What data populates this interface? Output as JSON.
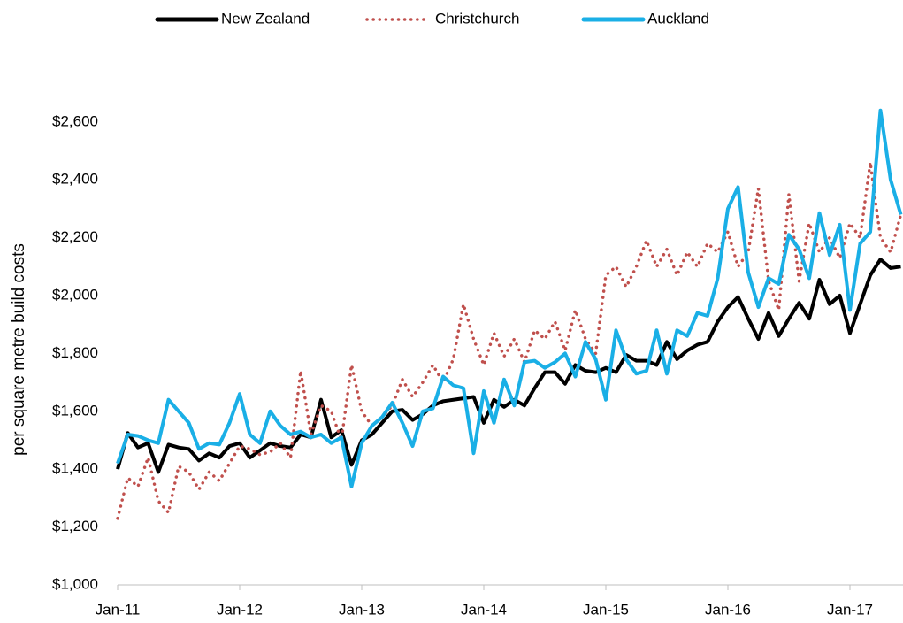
{
  "chart_data": {
    "type": "line",
    "ylabel": "per square metre build costs",
    "categories": [
      "Jan-11",
      null,
      null,
      null,
      null,
      null,
      null,
      null,
      null,
      null,
      null,
      null,
      "Jan-12",
      null,
      null,
      null,
      null,
      null,
      null,
      null,
      null,
      null,
      null,
      null,
      "Jan-13",
      null,
      null,
      null,
      null,
      null,
      null,
      null,
      null,
      null,
      null,
      null,
      "Jan-14",
      null,
      null,
      null,
      null,
      null,
      null,
      null,
      null,
      null,
      null,
      null,
      "Jan-15",
      null,
      null,
      null,
      null,
      null,
      null,
      null,
      null,
      null,
      null,
      null,
      "Jan-16",
      null,
      null,
      null,
      null,
      null,
      null,
      null,
      null,
      null,
      null,
      null,
      "Jan-17",
      null,
      null,
      null,
      null,
      null
    ],
    "series": [
      {
        "name": "New Zealand",
        "color": "#000000",
        "style": "solid",
        "values": [
          1400,
          1525,
          1475,
          1490,
          1390,
          1485,
          1475,
          1470,
          1430,
          1455,
          1440,
          1480,
          1490,
          1440,
          1465,
          1490,
          1480,
          1475,
          1520,
          1510,
          1640,
          1510,
          1535,
          1415,
          1500,
          1520,
          1560,
          1600,
          1605,
          1570,
          1590,
          1620,
          1635,
          1640,
          1645,
          1650,
          1560,
          1640,
          1615,
          1640,
          1620,
          1680,
          1735,
          1735,
          1695,
          1760,
          1740,
          1735,
          1750,
          1735,
          1795,
          1775,
          1775,
          1760,
          1840,
          1780,
          1810,
          1830,
          1840,
          1910,
          1960,
          1995,
          1920,
          1850,
          1940,
          1860,
          1920,
          1975,
          1920,
          2055,
          1970,
          2000,
          1870,
          1970,
          2070,
          2125,
          2095,
          2100
        ]
      },
      {
        "name": "Christchurch",
        "color": "#c0504d",
        "style": "dotted",
        "values": [
          1230,
          1370,
          1340,
          1440,
          1290,
          1250,
          1410,
          1390,
          1330,
          1390,
          1360,
          1420,
          1480,
          1470,
          1450,
          1460,
          1490,
          1440,
          1740,
          1520,
          1620,
          1600,
          1500,
          1760,
          1600,
          1550,
          1580,
          1620,
          1710,
          1650,
          1700,
          1760,
          1700,
          1780,
          1970,
          1850,
          1760,
          1870,
          1790,
          1850,
          1770,
          1880,
          1850,
          1910,
          1810,
          1950,
          1850,
          1800,
          2070,
          2100,
          2030,
          2100,
          2190,
          2100,
          2160,
          2070,
          2150,
          2100,
          2180,
          2150,
          2220,
          2100,
          2150,
          2370,
          2050,
          1950,
          2350,
          2050,
          2250,
          2150,
          2200,
          2130,
          2250,
          2200,
          2460,
          2200,
          2150,
          2280
        ]
      },
      {
        "name": "Auckland",
        "color": "#1aafe6",
        "style": "solid",
        "values": [
          1420,
          1520,
          1515,
          1500,
          1490,
          1640,
          1600,
          1560,
          1470,
          1490,
          1485,
          1560,
          1660,
          1520,
          1490,
          1600,
          1550,
          1520,
          1530,
          1510,
          1520,
          1490,
          1510,
          1340,
          1490,
          1550,
          1580,
          1630,
          1560,
          1480,
          1600,
          1610,
          1720,
          1690,
          1680,
          1455,
          1670,
          1560,
          1710,
          1620,
          1770,
          1775,
          1750,
          1770,
          1800,
          1720,
          1840,
          1780,
          1640,
          1880,
          1780,
          1730,
          1740,
          1880,
          1730,
          1880,
          1860,
          1940,
          1930,
          2060,
          2300,
          2375,
          2080,
          1960,
          2060,
          2040,
          2210,
          2160,
          2060,
          2285,
          2140,
          2245,
          1950,
          2180,
          2220,
          2640,
          2400,
          2280
        ]
      }
    ],
    "ylim": [
      1000,
      2800
    ],
    "yticks": [
      {
        "value": 1000,
        "label": "$1,000"
      },
      {
        "value": 1200,
        "label": "$1,200"
      },
      {
        "value": 1400,
        "label": "$1,400"
      },
      {
        "value": 1600,
        "label": "$1,600"
      },
      {
        "value": 1800,
        "label": "$1,800"
      },
      {
        "value": 2000,
        "label": "$2,000"
      },
      {
        "value": 2200,
        "label": "$2,200"
      },
      {
        "value": 2400,
        "label": "$2,400"
      },
      {
        "value": 2600,
        "label": "$2,600"
      }
    ],
    "grid": false,
    "legend": "top"
  }
}
